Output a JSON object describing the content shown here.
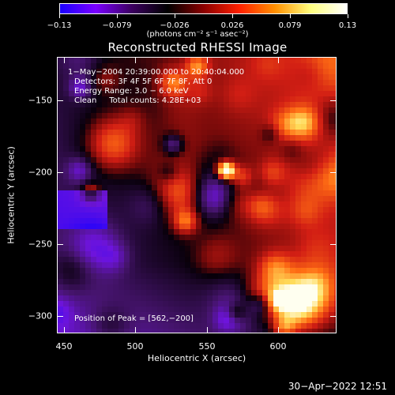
{
  "colorbar": {
    "ticks": [
      "−0.13",
      "−0.079",
      "−0.026",
      "0.026",
      "0.079",
      "0.13"
    ],
    "units": "(photons cm⁻² s⁻¹ asec⁻²)",
    "colors": [
      "#1a00ff",
      "#7a00ff",
      "#3c0060",
      "#000000",
      "#8a0000",
      "#ff2000",
      "#ff9000",
      "#ffff80",
      "#ffffff"
    ]
  },
  "title": "Reconstructed RHESSI Image",
  "annotations": {
    "line1": "1−May−2004 20:39:00.000 to 20:40:04.000",
    "line2": "Detectors: 3F 4F 5F 6F 7F 8F, Att 0",
    "line3": "Energy Range: 3.0 − 6.0 keV",
    "line4": "Clean     Total counts: 4.28E+03",
    "peak": "Position of Peak = [562,−200]"
  },
  "axes": {
    "xlabel": "Heliocentric X (arcsec)",
    "ylabel": "Heliocentric Y (arcsec)",
    "xticks": [
      "450",
      "500",
      "550",
      "600"
    ],
    "yticks": [
      "−150",
      "−200",
      "−250",
      "−300"
    ]
  },
  "chart_data": {
    "type": "heatmap",
    "title": "Reconstructed RHESSI Image",
    "xlabel": "Heliocentric X (arcsec)",
    "ylabel": "Heliocentric Y (arcsec)",
    "xlim": [
      448,
      640
    ],
    "ylim": [
      -320,
      -125
    ],
    "color_range": [
      -0.13,
      0.13
    ],
    "peak": [
      562,
      -200
    ]
  },
  "footer": "30−Apr−2022 12:51"
}
